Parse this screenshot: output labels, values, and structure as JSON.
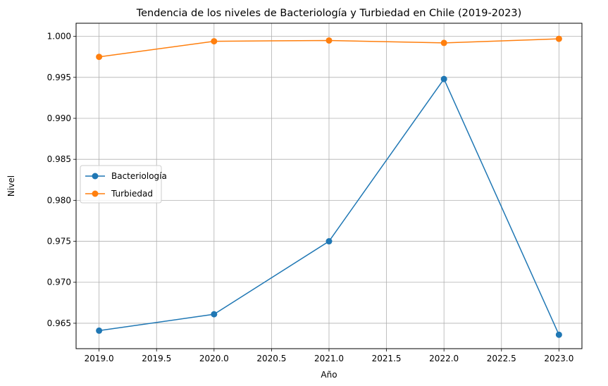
{
  "chart_data": {
    "type": "line",
    "title": "Tendencia de los niveles de Bacteriología y Turbiedad en Chile (2019-2023)",
    "xlabel": "Año",
    "ylabel": "Nivel",
    "x": [
      2019,
      2020,
      2021,
      2022,
      2023
    ],
    "xlim": [
      2018.8,
      2023.2
    ],
    "ylim": [
      0.9619,
      1.0016
    ],
    "xticks": [
      "2019.0",
      "2019.5",
      "2020.0",
      "2020.5",
      "2021.0",
      "2021.5",
      "2022.0",
      "2022.5",
      "2023.0"
    ],
    "xtick_values": [
      2019.0,
      2019.5,
      2020.0,
      2020.5,
      2021.0,
      2021.5,
      2022.0,
      2022.5,
      2023.0
    ],
    "yticks": [
      "0.965",
      "0.970",
      "0.975",
      "0.980",
      "0.985",
      "0.990",
      "0.995",
      "1.000"
    ],
    "ytick_values": [
      0.965,
      0.97,
      0.975,
      0.98,
      0.985,
      0.99,
      0.995,
      1.0
    ],
    "grid": true,
    "legend_position": "center-left",
    "series": [
      {
        "name": "Bacteriología",
        "color": "#1f77b4",
        "marker": "circle",
        "values": [
          0.9641,
          0.9661,
          0.975,
          0.9948,
          0.9636
        ]
      },
      {
        "name": "Turbiedad",
        "color": "#ff7f0e",
        "marker": "circle",
        "values": [
          0.9975,
          0.9994,
          0.9995,
          0.9992,
          0.9997
        ]
      }
    ]
  }
}
